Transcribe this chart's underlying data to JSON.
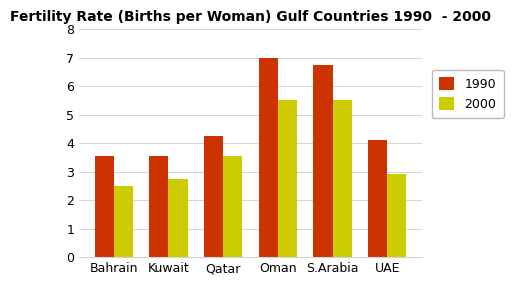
{
  "title": "Fertility Rate (Births per Woman) Gulf Countries 1990  - 2000",
  "categories": [
    "Bahrain",
    "Kuwait",
    "Qatar",
    "Oman",
    "S.Arabia",
    "UAE"
  ],
  "values_1990": [
    3.55,
    3.55,
    4.25,
    7.0,
    6.75,
    4.1
  ],
  "values_2000": [
    2.5,
    2.75,
    3.55,
    5.5,
    5.5,
    2.9
  ],
  "color_1990": "#CC3300",
  "color_2000": "#CCCC00",
  "legend_labels": [
    "1990",
    "2000"
  ],
  "ylim": [
    0,
    8
  ],
  "yticks": [
    0,
    1,
    2,
    3,
    4,
    5,
    6,
    7,
    8
  ],
  "bar_width": 0.35,
  "title_fontsize": 10,
  "tick_fontsize": 9,
  "legend_fontsize": 9
}
